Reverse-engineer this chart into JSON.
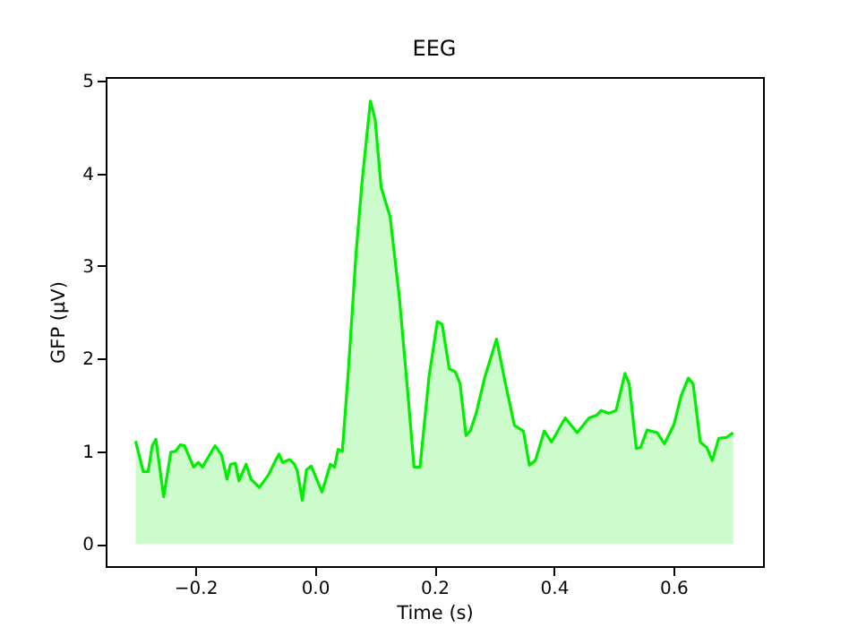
{
  "chart_data": {
    "type": "area",
    "title": "EEG",
    "xlabel": "Time (s)",
    "ylabel": "GFP (µV)",
    "xlim": [
      -0.35,
      0.75
    ],
    "ylim": [
      -0.24,
      5.04
    ],
    "xticks": [
      {
        "value": -0.2,
        "label": "−0.2"
      },
      {
        "value": 0,
        "label": "0.0"
      },
      {
        "value": 0.2,
        "label": "0.2"
      },
      {
        "value": 0.4,
        "label": "0.4"
      },
      {
        "value": 0.6,
        "label": "0.6"
      }
    ],
    "yticks": [
      0,
      1,
      2,
      3,
      4,
      5
    ],
    "grid": false,
    "x": [
      -0.3,
      -0.287,
      -0.279,
      -0.272,
      -0.266,
      -0.253,
      -0.241,
      -0.233,
      -0.225,
      -0.218,
      -0.203,
      -0.195,
      -0.188,
      -0.178,
      -0.167,
      -0.156,
      -0.147,
      -0.141,
      -0.133,
      -0.127,
      -0.115,
      -0.107,
      -0.093,
      -0.078,
      -0.065,
      -0.06,
      -0.054,
      -0.042,
      -0.034,
      -0.029,
      -0.021,
      -0.014,
      -0.006,
      0.012,
      0.026,
      0.033,
      0.039,
      0.046,
      0.056,
      0.069,
      0.079,
      0.093,
      0.101,
      0.111,
      0.126,
      0.141,
      0.156,
      0.166,
      0.176,
      0.191,
      0.205,
      0.213,
      0.225,
      0.235,
      0.243,
      0.253,
      0.26,
      0.27,
      0.284,
      0.304,
      0.319,
      0.334,
      0.349,
      0.359,
      0.369,
      0.384,
      0.396,
      0.419,
      0.439,
      0.459,
      0.472,
      0.479,
      0.492,
      0.504,
      0.519,
      0.526,
      0.538,
      0.545,
      0.556,
      0.573,
      0.585,
      0.601,
      0.613,
      0.625,
      0.633,
      0.645,
      0.656,
      0.665,
      0.676,
      0.689,
      0.7
    ],
    "series": [
      {
        "color": "#00ee00",
        "values": [
          1.11,
          0.78,
          0.78,
          1.06,
          1.13,
          0.51,
          0.99,
          1.0,
          1.07,
          1.06,
          0.83,
          0.88,
          0.83,
          0.94,
          1.06,
          0.96,
          0.7,
          0.86,
          0.87,
          0.68,
          0.86,
          0.7,
          0.61,
          0.74,
          0.91,
          0.97,
          0.88,
          0.91,
          0.86,
          0.78,
          0.47,
          0.8,
          0.84,
          0.56,
          0.86,
          0.83,
          1.02,
          1.0,
          1.86,
          3.14,
          3.91,
          4.78,
          4.58,
          3.85,
          3.53,
          2.69,
          1.6,
          0.83,
          0.83,
          1.8,
          2.4,
          2.37,
          1.89,
          1.86,
          1.73,
          1.17,
          1.22,
          1.41,
          1.79,
          2.21,
          1.73,
          1.28,
          1.22,
          0.85,
          0.9,
          1.22,
          1.1,
          1.36,
          1.2,
          1.36,
          1.39,
          1.44,
          1.41,
          1.44,
          1.84,
          1.73,
          1.03,
          1.04,
          1.23,
          1.2,
          1.08,
          1.29,
          1.6,
          1.79,
          1.73,
          1.1,
          1.04,
          0.9,
          1.14,
          1.15,
          1.2
        ]
      }
    ]
  }
}
